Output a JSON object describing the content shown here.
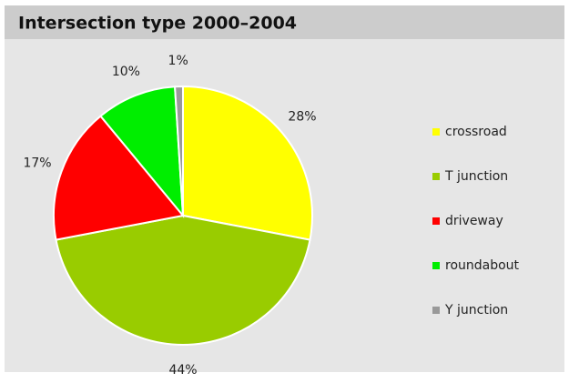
{
  "chart_data": {
    "type": "pie",
    "title": "Intersection type 2000–2004",
    "categories": [
      "crossroad",
      "T junction",
      "driveway",
      "roundabout",
      "Y junction"
    ],
    "values": [
      28,
      44,
      17,
      10,
      1
    ],
    "value_labels": [
      "28%",
      "44%",
      "17%",
      "10%",
      "1%"
    ],
    "colors": [
      "#ffff00",
      "#99cc00",
      "#ff0000",
      "#00ee00",
      "#999999"
    ],
    "legend": "right"
  }
}
